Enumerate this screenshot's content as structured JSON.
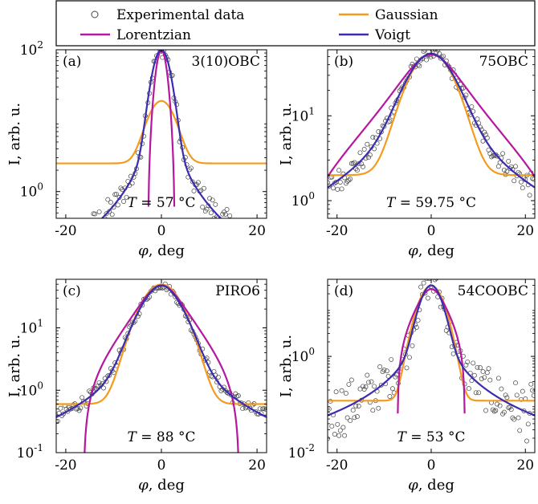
{
  "legend": {
    "experimental_label": "Experimental data",
    "gaussian_label": "Gaussian",
    "lorentzian_label": "Lorentzian",
    "voigt_label": "Voigt"
  },
  "colors": {
    "experimental": "#444444",
    "gaussian": "#f39b1f",
    "lorentzian": "#b5179e",
    "voigt": "#3b2db0"
  },
  "xlabel_var": "φ",
  "xlabel_unit": ", deg",
  "ylabel": "I, arb. u.",
  "chart_data": [
    {
      "type": "scatter",
      "panel": "(a)",
      "sample": "3(10)OBC",
      "temperature_var": "T",
      "temperature_value": " = 57 °C",
      "xlim": [
        -22,
        22
      ],
      "ylim": [
        0.42,
        100
      ],
      "yscale": "log",
      "yticks": [
        {
          "value": 1,
          "base": "10",
          "exp": "0"
        },
        {
          "value": 100,
          "base": "10",
          "exp": "2"
        }
      ],
      "xticks": [
        -20,
        0,
        20
      ],
      "models": {
        "voigt": {
          "A": 100,
          "g": 0.9,
          "gw": 1.5,
          "l": 2.6,
          "c": 0
        },
        "lorentzian": {
          "A": 100,
          "g": 1,
          "gw": 1,
          "l": 3.3,
          "c": -2.0
        },
        "gaussian": {
          "A": 16.5,
          "g": 1,
          "gw": 2.4,
          "l": 1,
          "c": 2.5
        }
      },
      "scatter_noise": 0.25
    },
    {
      "type": "scatter",
      "panel": "(b)",
      "sample": "75OBC",
      "temperature_var": "T",
      "temperature_value": " = 59.75 °C",
      "xlim": [
        -22,
        22
      ],
      "ylim": [
        0.62,
        60
      ],
      "yscale": "log",
      "yticks": [
        {
          "value": 1,
          "base": "10",
          "exp": "0"
        },
        {
          "value": 10,
          "base": "10",
          "exp": "1"
        }
      ],
      "xticks": [
        -20,
        0,
        20
      ],
      "models": {
        "voigt": {
          "A": 54,
          "g": 0.55,
          "gw": 4.2,
          "l": 5.5,
          "c": 0
        },
        "lorentzian": {
          "A": 55,
          "g": 0,
          "gw": 1,
          "l": 6.5,
          "c": -2.5
        },
        "gaussian": {
          "A": 52,
          "g": 1,
          "gw": 4.0,
          "l": 1,
          "c": 2.0
        }
      },
      "scatter_noise": 0.14
    },
    {
      "type": "scatter",
      "panel": "(c)",
      "sample": "PIRO6",
      "temperature_var": "T",
      "temperature_value": " = 88 °C",
      "xlim": [
        -22,
        22
      ],
      "ylim": [
        0.1,
        60
      ],
      "yscale": "log",
      "yticks": [
        {
          "value": 0.1,
          "base": "10",
          "exp": "-1"
        },
        {
          "value": 1,
          "base": "10",
          "exp": "0"
        },
        {
          "value": 10,
          "base": "10",
          "exp": "1"
        }
      ],
      "xticks": [
        -20,
        0,
        20
      ],
      "models": {
        "voigt": {
          "A": 48,
          "g": 0.65,
          "gw": 3.6,
          "l": 3.3,
          "c": 0
        },
        "lorentzian": {
          "A": 52,
          "g": 0,
          "gw": 1,
          "l": 4.7,
          "c": -4.0
        },
        "gaussian": {
          "A": 49,
          "g": 1,
          "gw": 3.5,
          "l": 1,
          "c": 0.6
        }
      },
      "scatter_noise": 0.12
    },
    {
      "type": "scatter",
      "panel": "(d)",
      "sample": "54COOBC",
      "temperature_var": "T",
      "temperature_value": " = 53 °C",
      "xlim": [
        -22,
        22
      ],
      "ylim": [
        0.01,
        40
      ],
      "yscale": "log",
      "yticks": [
        {
          "value": 0.01,
          "base": "10",
          "exp": "-2"
        },
        {
          "value": 1,
          "base": "10",
          "exp": "0"
        }
      ],
      "xticks": [
        -20,
        0,
        20
      ],
      "models": {
        "voigt": {
          "A": 30,
          "g": 0.8,
          "gw": 1.8,
          "l": 2.2,
          "c": 0
        },
        "lorentzian": {
          "A": 30,
          "g": 0,
          "gw": 1,
          "l": 3.2,
          "c": -5.0
        },
        "gaussian": {
          "A": 29,
          "g": 1,
          "gw": 2.1,
          "l": 1,
          "c": 0.12
        }
      },
      "scatter_noise": 0.6
    }
  ]
}
